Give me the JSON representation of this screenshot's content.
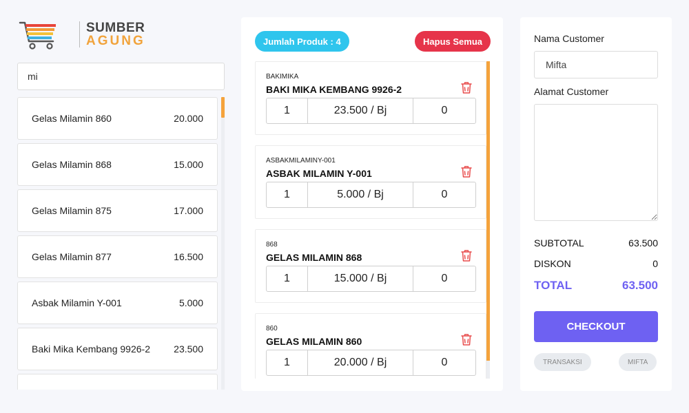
{
  "brand": {
    "line1": "SUMBER",
    "line2": "AGUNG"
  },
  "search": {
    "value": "mi"
  },
  "products": [
    {
      "name": "Gelas Milamin 860",
      "price": "20.000"
    },
    {
      "name": "Gelas Milamin 868",
      "price": "15.000"
    },
    {
      "name": "Gelas Milamin 875",
      "price": "17.000"
    },
    {
      "name": "Gelas Milamin 877",
      "price": "16.500"
    },
    {
      "name": "Asbak Milamin Y-001",
      "price": "5.000"
    },
    {
      "name": "Baki Mika Kembang 9926-2",
      "price": "23.500"
    }
  ],
  "cart": {
    "count_label": "Jumlah Produk : 4",
    "clear_label": "Hapus Semua",
    "items": [
      {
        "code": "BAKIMIKA",
        "name": "BAKI MIKA KEMBANG 9926-2",
        "qty": "1",
        "price": "23.500 / Bj",
        "discount": "0"
      },
      {
        "code": "ASBAKMILAMINY-001",
        "name": "ASBAK MILAMIN Y-001",
        "qty": "1",
        "price": "5.000 / Bj",
        "discount": "0"
      },
      {
        "code": "868",
        "name": "GELAS MILAMIN 868",
        "qty": "1",
        "price": "15.000 / Bj",
        "discount": "0"
      },
      {
        "code": "860",
        "name": "GELAS MILAMIN 860",
        "qty": "1",
        "price": "20.000 / Bj",
        "discount": "0"
      }
    ]
  },
  "customer": {
    "name_label": "Nama Customer",
    "name_value": "Mifta",
    "address_label": "Alamat Customer",
    "address_value": ""
  },
  "summary": {
    "subtotal_label": "SUBTOTAL",
    "subtotal_value": "63.500",
    "discount_label": "DISKON",
    "discount_value": "0",
    "total_label": "TOTAL",
    "total_value": "63.500"
  },
  "checkout_label": "CHECKOUT",
  "chips": {
    "transactions": "TRANSAKSI",
    "user": "MIFTA"
  },
  "colors": {
    "accent": "#6e61f2",
    "orange": "#f5a33c",
    "cyan": "#2fc5ed",
    "red": "#e6344a"
  }
}
